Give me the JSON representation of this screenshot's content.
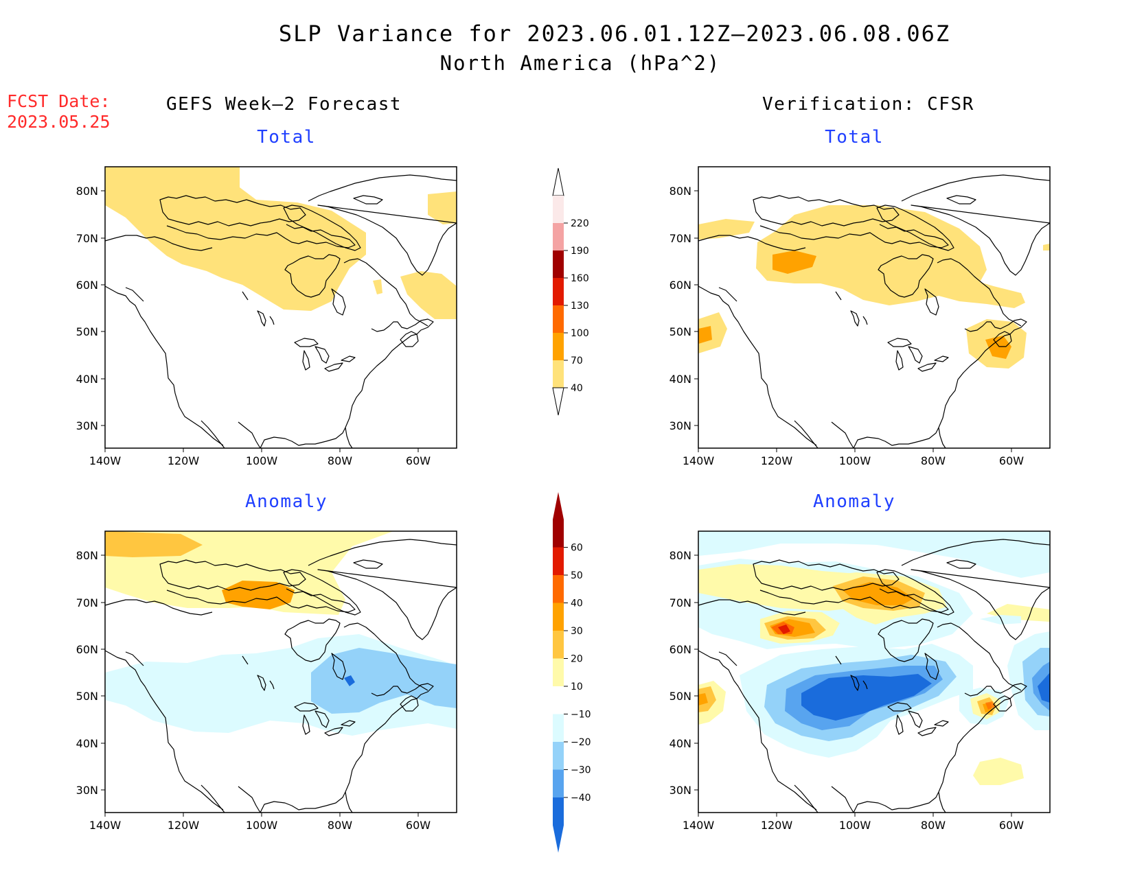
{
  "title_line1": "SLP Variance for 2023.06.01.12Z–2023.06.08.06Z",
  "title_line2": "North America (hPa^2)",
  "fcst_label": "FCST Date:",
  "fcst_value": "2023.05.25",
  "col_left_title": "GEFS Week–2 Forecast",
  "col_right_title": "Verification: CFSR",
  "panels": {
    "tl": {
      "title": "Total"
    },
    "tr": {
      "title": "Total"
    },
    "bl": {
      "title": "Anomaly"
    },
    "br": {
      "title": "Anomaly"
    }
  },
  "lat_labels": [
    "80N",
    "70N",
    "60N",
    "50N",
    "40N",
    "30N"
  ],
  "lon_labels": [
    "140W",
    "120W",
    "100W",
    "80W",
    "60W"
  ],
  "colorbar_total": {
    "labels": [
      "220",
      "190",
      "160",
      "130",
      "100",
      "70",
      "40"
    ],
    "colors": [
      "#fbe9e9",
      "#f4a3a3",
      "#a00000",
      "#e21a00",
      "#ff6a00",
      "#ffa200",
      "#ffe27a"
    ]
  },
  "colorbar_anom": {
    "labels": [
      "60",
      "50",
      "40",
      "30",
      "20",
      "10",
      "−10",
      "−20",
      "−30",
      "−40"
    ],
    "colors": [
      "#a00000",
      "#e21a00",
      "#ff6a00",
      "#ffa200",
      "#ffc640",
      "#fffaaa",
      "#ffffff",
      "#dcfbff",
      "#94d2f9",
      "#58a4ef",
      "#1a6cdc"
    ]
  }
}
